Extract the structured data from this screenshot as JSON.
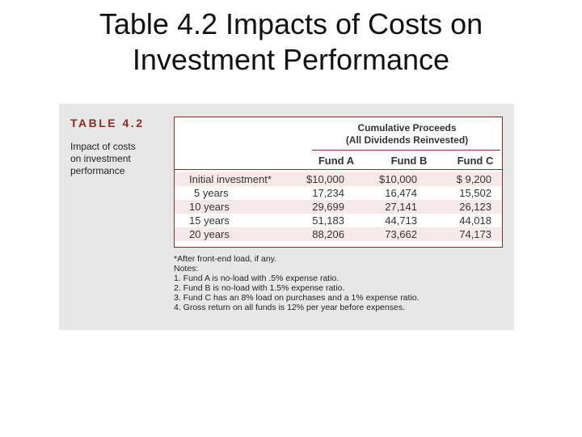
{
  "slide": {
    "title_line1": "Table 4.2 Impacts of Costs on",
    "title_line2": "Investment Performance"
  },
  "table": {
    "label": "TABLE 4.2",
    "caption_lines": [
      "Impact of costs",
      "on investment",
      "performance"
    ],
    "group_header_line1": "Cumulative Proceeds",
    "group_header_line2": "(All Dividends Reinvested)",
    "columns": [
      "Fund A",
      "Fund B",
      "Fund C"
    ],
    "rows": [
      {
        "label": "Initial investment*",
        "values": [
          "$10,000",
          "$10,000",
          "$  9,200"
        ]
      },
      {
        "label": "5 years",
        "values": [
          "17,234",
          "16,474",
          "15,502"
        ]
      },
      {
        "label": "10 years",
        "values": [
          "29,699",
          "27,141",
          "26,123"
        ]
      },
      {
        "label": "15 years",
        "values": [
          "51,183",
          "44,713",
          "44,018"
        ]
      },
      {
        "label": "20 years",
        "values": [
          "88,206",
          "73,662",
          "74,173"
        ]
      }
    ],
    "footnote": "*After front-end load, if any.",
    "notes_heading": "Notes:",
    "notes": [
      "1. Fund A is no-load with .5% expense ratio.",
      "2. Fund B is no-load with 1.5% expense ratio.",
      "3. Fund C has an 8% load on purchases and a 1% expense ratio.",
      "4. Gross return on all funds is 12% per year before expenses."
    ]
  },
  "colors": {
    "accent": "#8a2a22",
    "row_tint": "#f6e9ea",
    "panel_bg": "#e7e7e7"
  }
}
